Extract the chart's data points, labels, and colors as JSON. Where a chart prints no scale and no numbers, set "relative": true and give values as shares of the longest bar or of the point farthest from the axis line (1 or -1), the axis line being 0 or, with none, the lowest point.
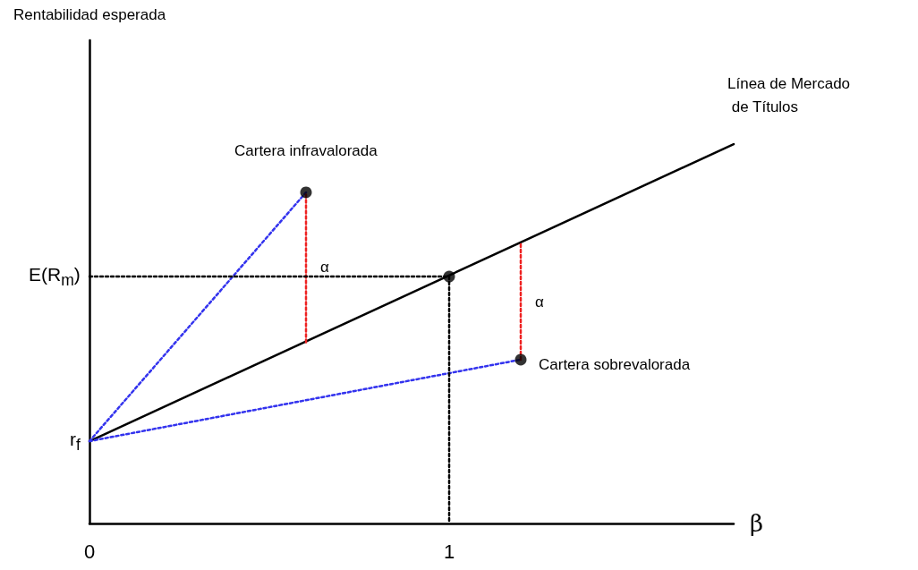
{
  "chart_data": {
    "type": "line",
    "relative": true,
    "xlabel": "β",
    "xlim": [
      0,
      1.791
    ],
    "xticks": [
      0,
      1
    ],
    "grid": false,
    "legend": false,
    "series": [
      {
        "name": "Línea de Mercado de Títulos",
        "color": "#000000",
        "x": [
          0,
          1.791
        ],
        "values": [
          0.217,
          1
        ],
        "line_style": "solid",
        "marker": "none"
      },
      {
        "color": "#3333ee",
        "x": [
          0,
          0.602
        ],
        "values": [
          0.217,
          0.873
        ],
        "line_style": "dotted",
        "marker": "none"
      },
      {
        "color": "#3333ee",
        "x": [
          0,
          1.199
        ],
        "values": [
          0.217,
          0.432
        ],
        "line_style": "dotted",
        "marker": "none"
      },
      {
        "color": "#ee2222",
        "x": [
          0.602,
          0.602
        ],
        "values": [
          0.478,
          0.873
        ],
        "line_style": "dotted",
        "marker": "none"
      },
      {
        "color": "#ee2222",
        "x": [
          1.199,
          1.199
        ],
        "values": [
          0.432,
          0.737
        ],
        "line_style": "dotted",
        "marker": "none"
      },
      {
        "color": "#000000",
        "x": [
          0,
          1,
          1
        ],
        "values": [
          0.651,
          0.651,
          0
        ],
        "line_style": "dotted",
        "marker": "none"
      },
      {
        "type": "scatter",
        "color": "#000000",
        "x": [
          0.602,
          1,
          1.199
        ],
        "values": [
          0.873,
          0.651,
          0.432
        ],
        "marker": "circle"
      }
    ],
    "annotations": [
      "Rentabilidad esperada",
      {
        "text": "r$_{f}$",
        "x": 0,
        "y": 0.217
      },
      {
        "text": "E(R$_{m}$)",
        "x": 0,
        "y": 0.651
      },
      {
        "text": "Cartera infravalorada",
        "x": 0.602,
        "y": 0.873
      },
      {
        "text": "Cartera sobrevalorada",
        "x": 1.199,
        "y": 0.432
      },
      {
        "text": "α",
        "x": 0.602,
        "y": 0.6755
      },
      {
        "text": "α",
        "x": 1.199,
        "y": 0.5845
      }
    ]
  }
}
